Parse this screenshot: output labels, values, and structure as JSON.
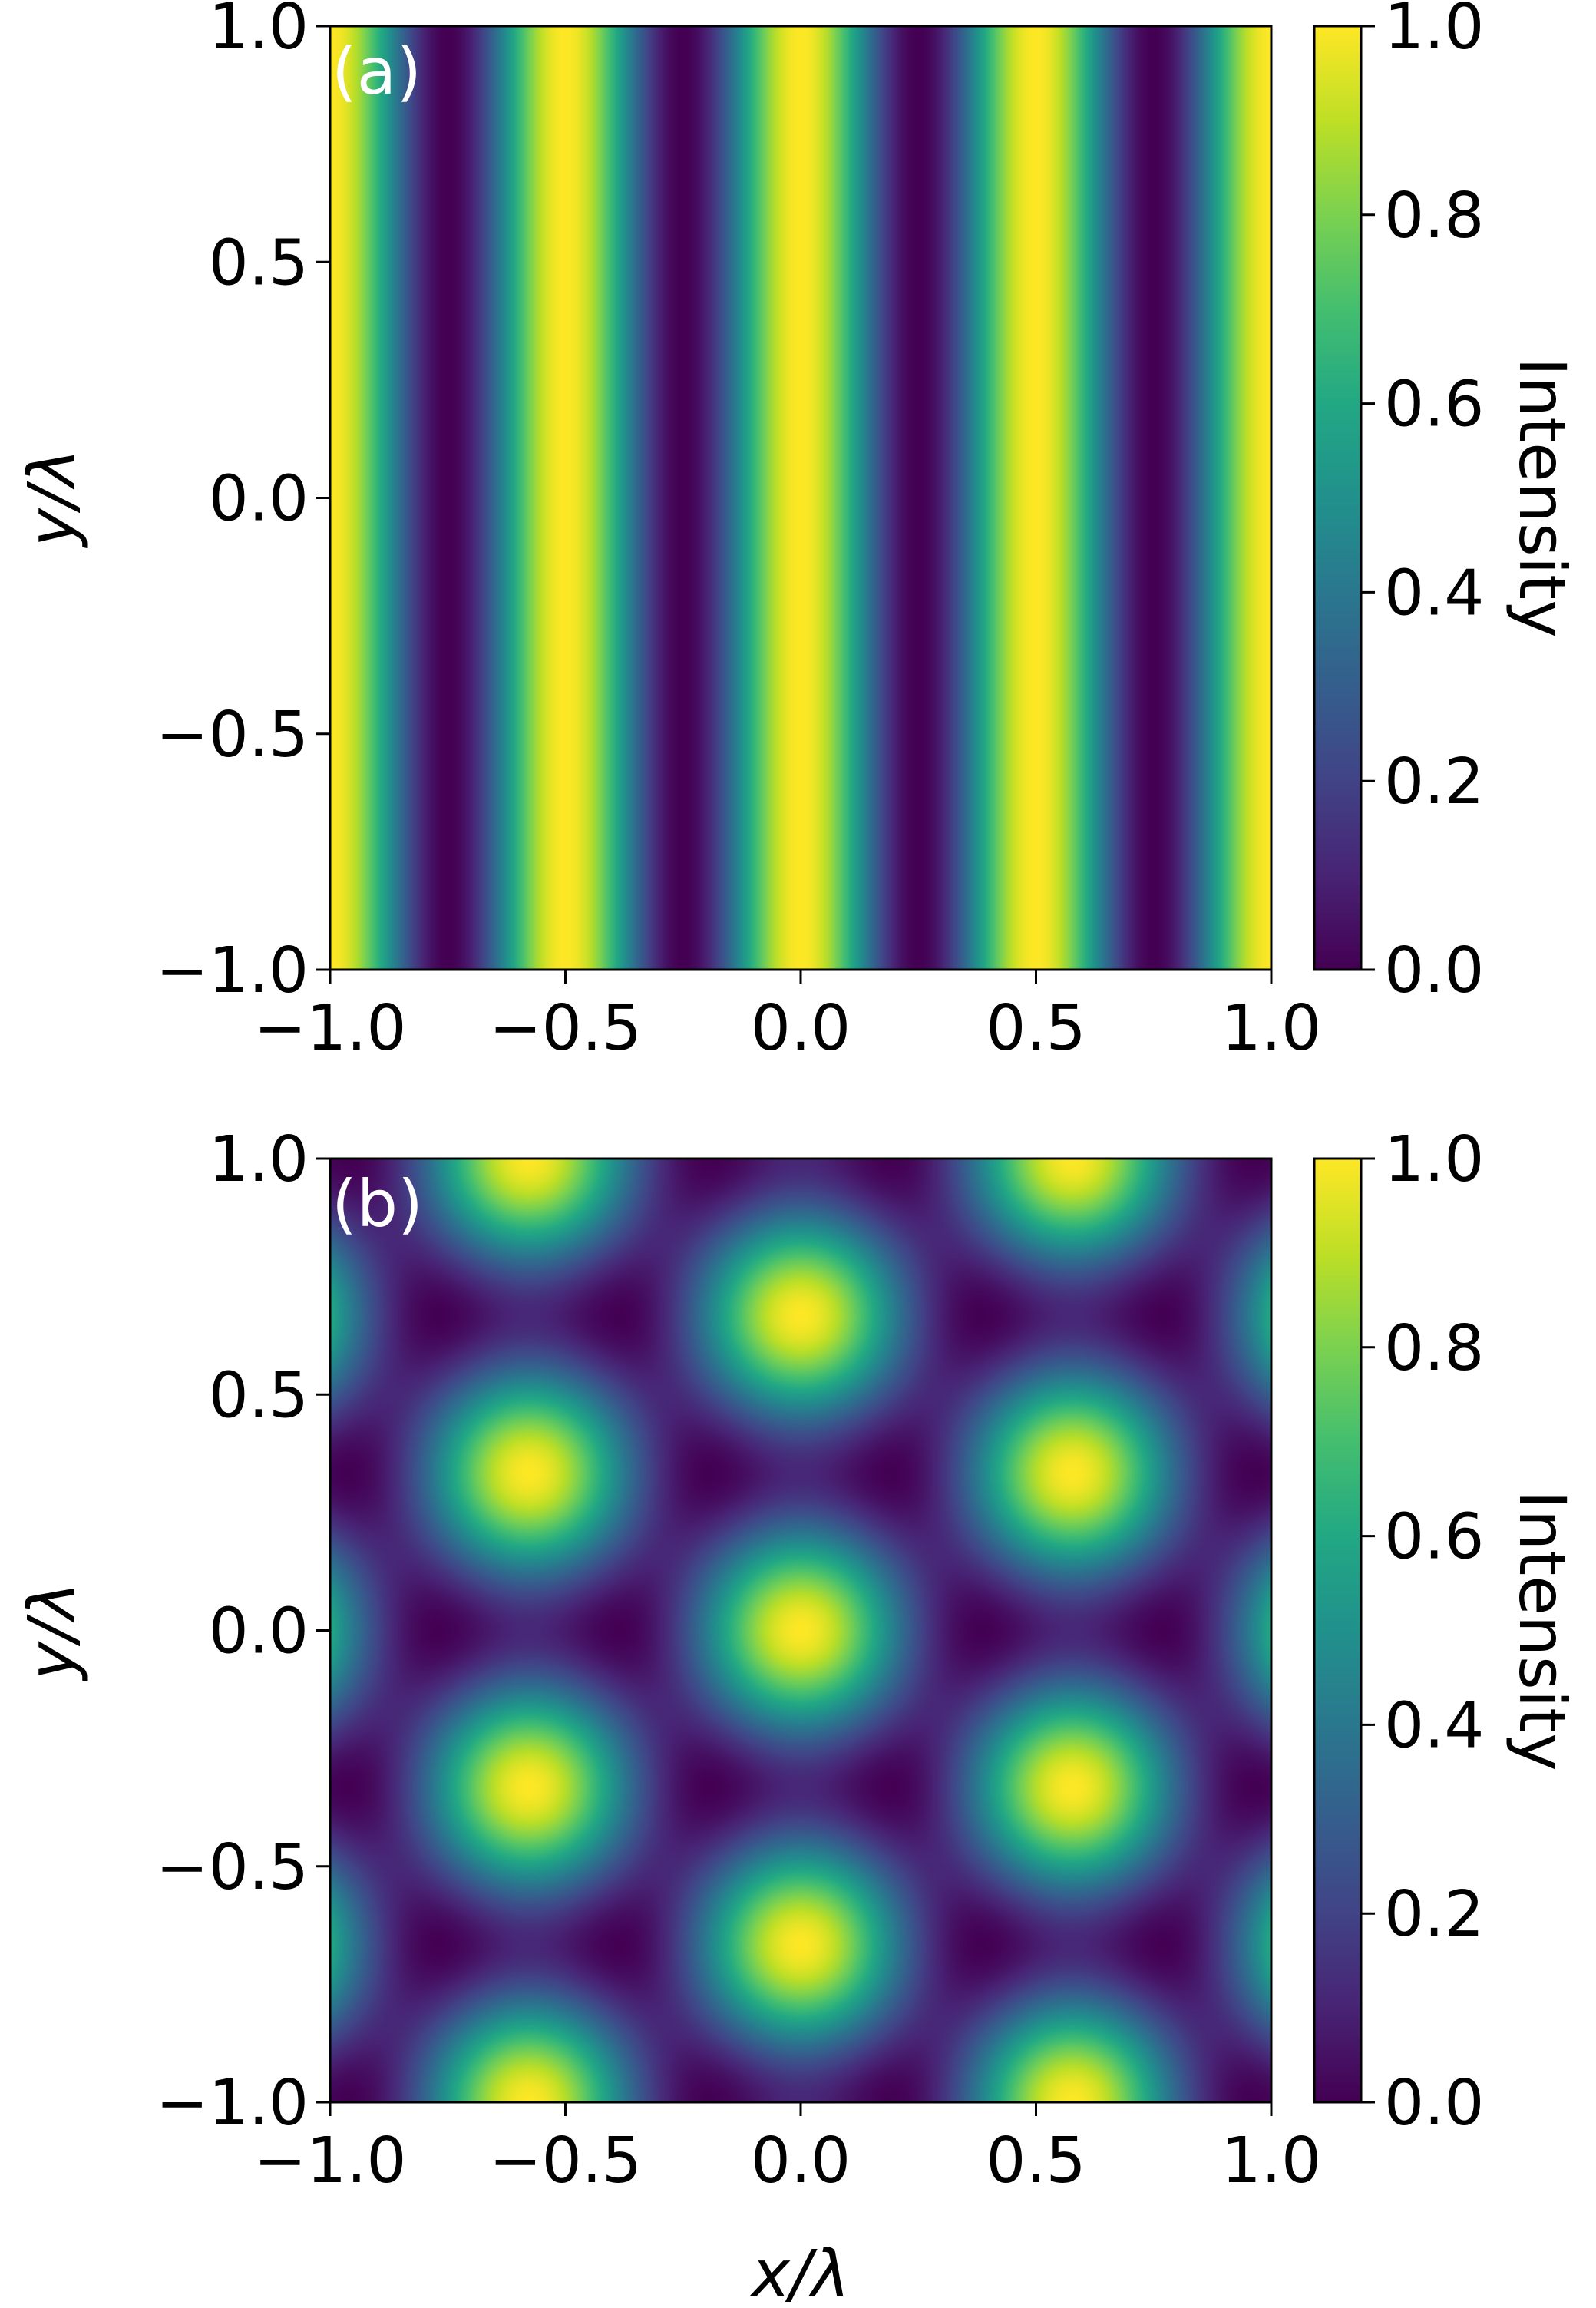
{
  "chart_data": [
    {
      "type": "heatmap",
      "panel_label": "(a)",
      "field": "stripes",
      "description_formula": "I = cos^2(2*pi*x/lambda)",
      "xlim": [
        -1.0,
        1.0
      ],
      "ylim": [
        -1.0,
        1.0
      ],
      "xlabel": "",
      "ylabel": "y/λ",
      "xticks": [
        "−1.0",
        "−0.5",
        "0.0",
        "0.5",
        "1.0"
      ],
      "yticks": [
        "−1.0",
        "−0.5",
        "0.0",
        "0.5",
        "1.0"
      ],
      "colorbar": {
        "label": "Intensity",
        "range": [
          0.0,
          1.0
        ],
        "ticks": [
          "0.0",
          "0.2",
          "0.4",
          "0.6",
          "0.8",
          "1.0"
        ],
        "colormap": "viridis"
      }
    },
    {
      "type": "heatmap",
      "panel_label": "(b)",
      "field": "hexagonal",
      "xlim": [
        -1.0,
        1.0
      ],
      "ylim": [
        -1.0,
        1.0
      ],
      "xlabel": "x/λ",
      "ylabel": "y/λ",
      "xticks": [
        "−1.0",
        "−0.5",
        "0.0",
        "0.5",
        "1.0"
      ],
      "yticks": [
        "−1.0",
        "−0.5",
        "0.0",
        "0.5",
        "1.0"
      ],
      "colorbar": {
        "label": "Intensity",
        "range": [
          0.0,
          1.0
        ],
        "ticks": [
          "0.0",
          "0.2",
          "0.4",
          "0.6",
          "0.8",
          "1.0"
        ],
        "colormap": "viridis"
      }
    }
  ],
  "colors": {
    "viridis_low": "#440154",
    "viridis_mid": "#21918c",
    "viridis_high": "#fde725",
    "panel_label": "#ffffff",
    "axis": "#000000"
  }
}
